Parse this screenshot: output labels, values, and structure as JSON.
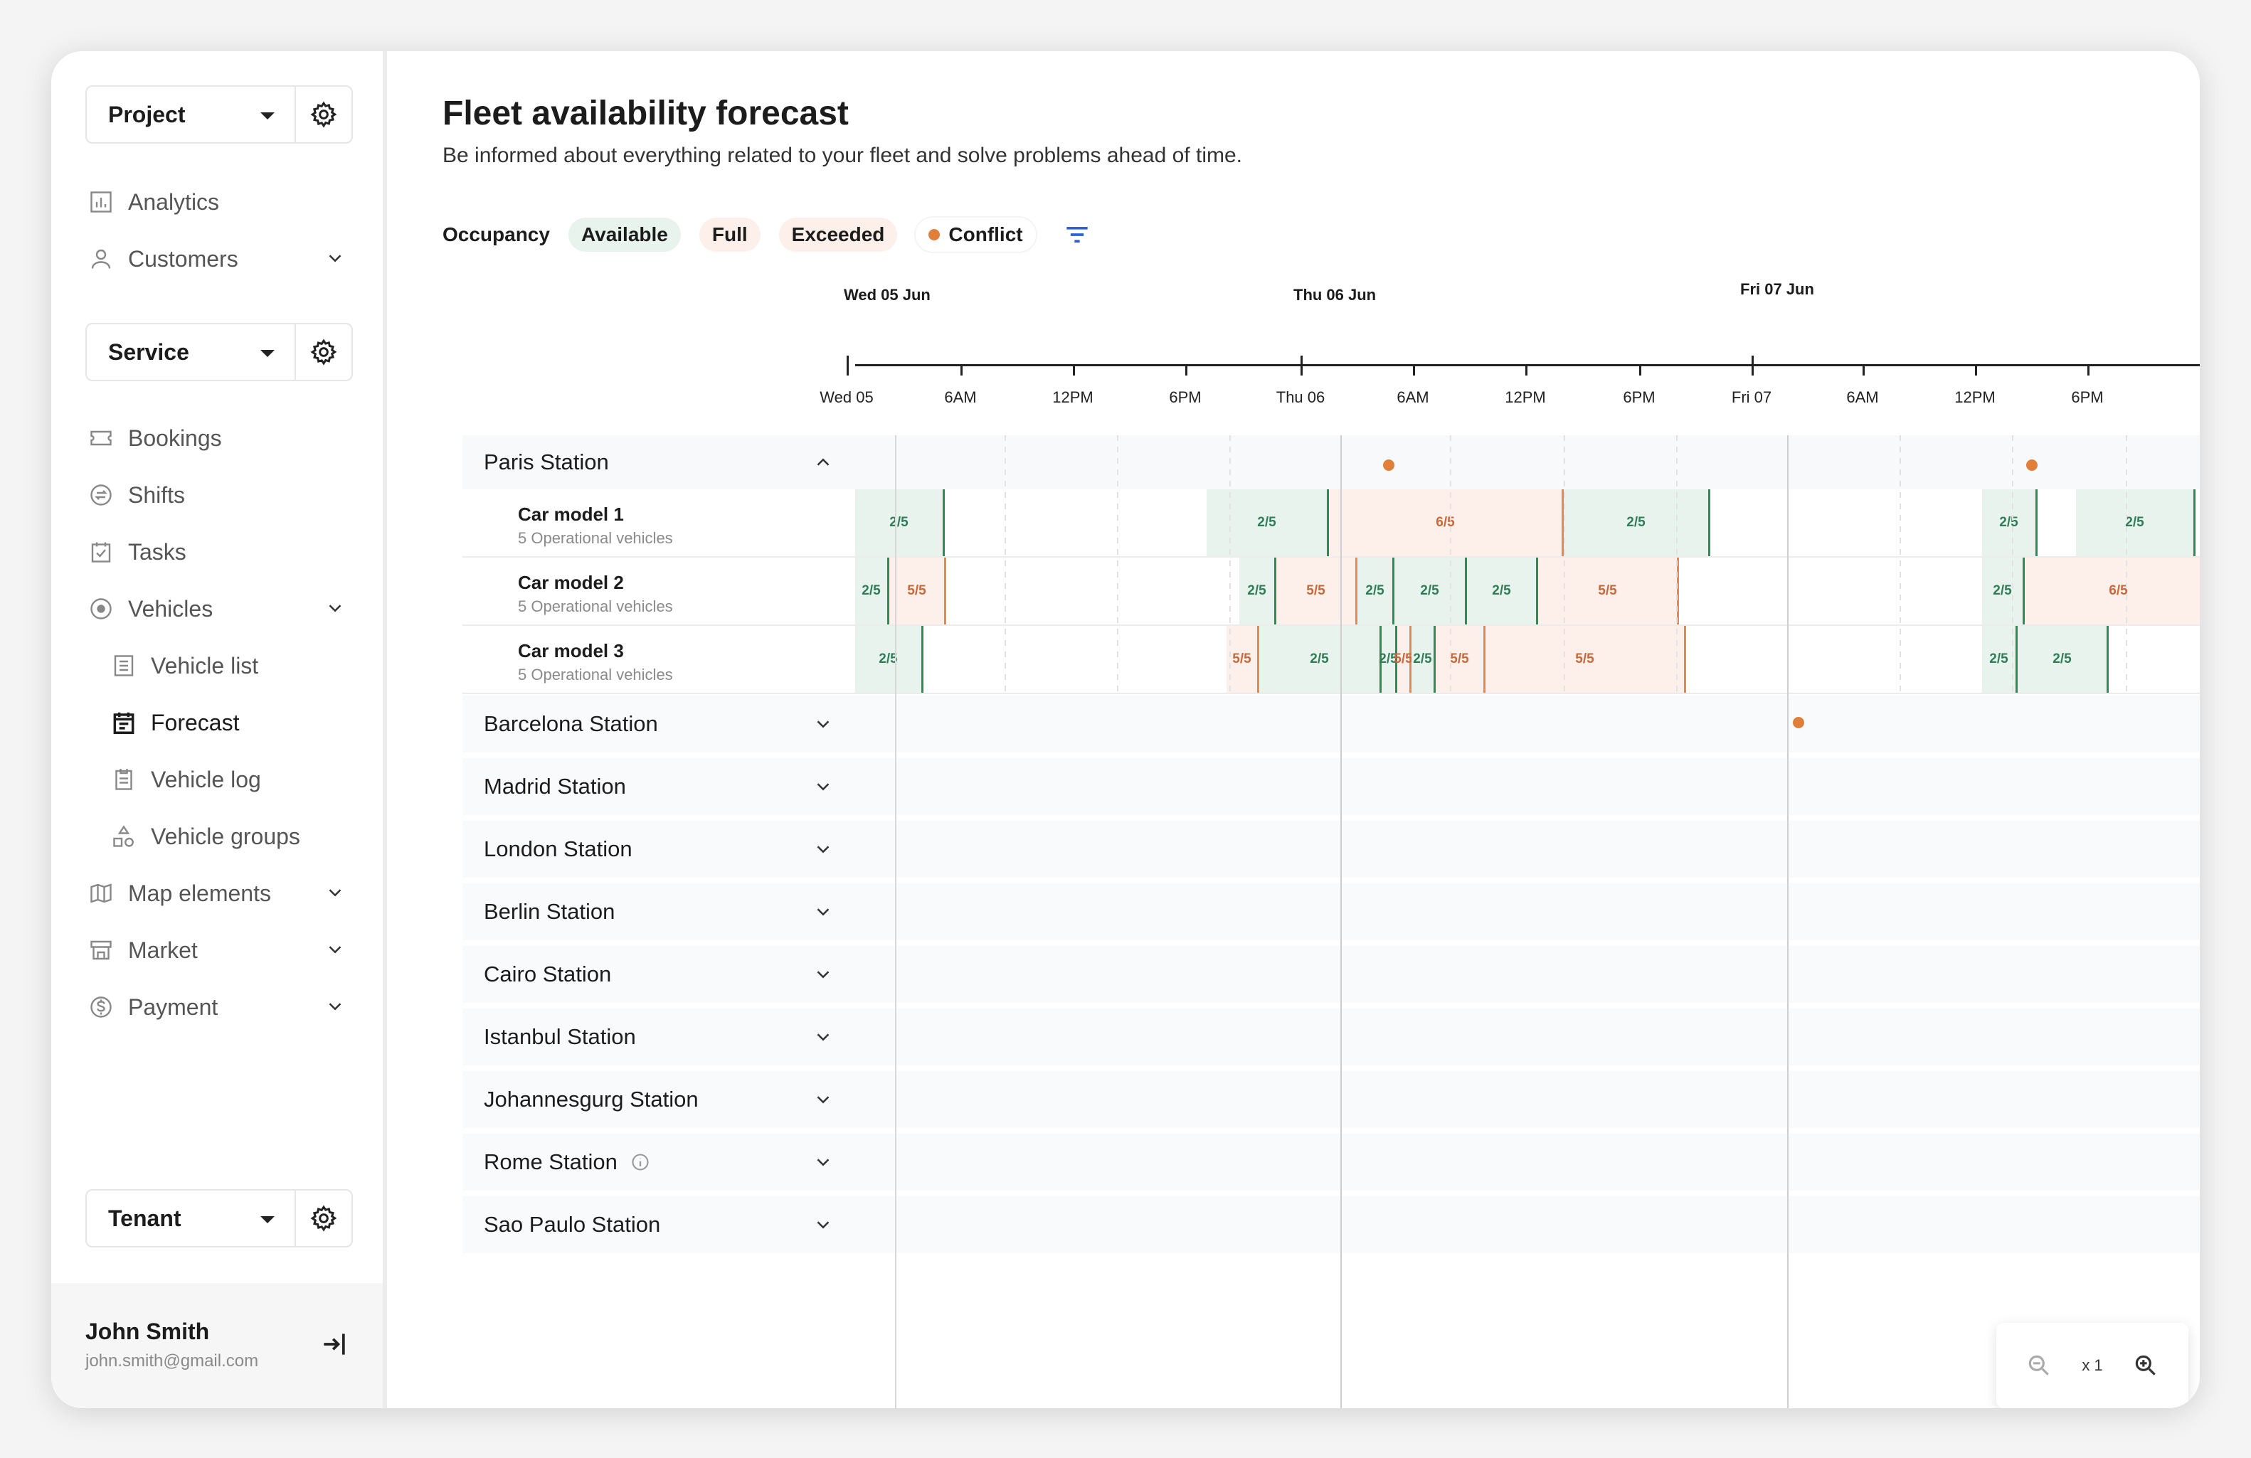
{
  "sidebar": {
    "project": {
      "label": "Project"
    },
    "service": {
      "label": "Service"
    },
    "tenant": {
      "label": "Tenant"
    },
    "items": [
      {
        "label": "Analytics",
        "icon": "analytics-icon"
      },
      {
        "label": "Customers",
        "icon": "user-icon"
      },
      {
        "label": "Bookings",
        "icon": "ticket-icon"
      },
      {
        "label": "Shifts",
        "icon": "swap-icon"
      },
      {
        "label": "Tasks",
        "icon": "tasks-icon"
      },
      {
        "label": "Vehicles",
        "icon": "vehicle-icon"
      },
      {
        "label": "Vehicle list",
        "icon": "list-icon"
      },
      {
        "label": "Forecast",
        "icon": "calendar-icon"
      },
      {
        "label": "Vehicle log",
        "icon": "log-icon"
      },
      {
        "label": "Vehicle groups",
        "icon": "shapes-icon"
      },
      {
        "label": "Map elements",
        "icon": "map-icon"
      },
      {
        "label": "Market",
        "icon": "store-icon"
      },
      {
        "label": "Payment",
        "icon": "dollar-icon"
      }
    ],
    "user": {
      "name": "John Smith",
      "email": "john.smith@gmail.com"
    }
  },
  "main": {
    "title": "Fleet availability forecast",
    "subtitle": "Be informed about everything related to your fleet and solve problems ahead of time.",
    "legend": {
      "occupancy": "Occupancy",
      "available": "Available",
      "full": "Full",
      "exceeded": "Exceeded",
      "conflict": "Conflict"
    },
    "colors": {
      "available": "#e8f3ee",
      "available_line": "#2e8b57",
      "full": "#fdf0ea",
      "exceeded_line": "#e08a55",
      "conflict": "#e07f3a"
    }
  },
  "timeline": {
    "days": [
      "Wed 05 Jun",
      "Thu 06 Jun",
      "Fri 07 Jun"
    ],
    "ticks": [
      "Wed 05",
      "6AM",
      "12PM",
      "6PM",
      "Thu 06",
      "6AM",
      "12PM",
      "6PM",
      "Fri 07",
      "6AM",
      "12PM",
      "6PM"
    ]
  },
  "stations": {
    "paris": "Paris Station",
    "list": [
      "Barcelona Station",
      "Madrid Station",
      "London Station",
      "Berlin Station",
      "Cairo Station",
      "Istanbul Station",
      "Johannesgurg Station",
      "Rome Station",
      "Sao Paulo Station"
    ]
  },
  "cars": [
    {
      "name": "Car model 1",
      "sub": "5 Operational vehicles",
      "segments": [
        {
          "label": "2/5",
          "kind": "g"
        },
        {
          "label": "2/5",
          "kind": "g"
        },
        {
          "label": "6/5",
          "kind": "o"
        },
        {
          "label": "2/5",
          "kind": "g"
        },
        {
          "label": "2/5",
          "kind": "g"
        },
        {
          "label": "2/5",
          "kind": "g"
        }
      ]
    },
    {
      "name": "Car model 2",
      "sub": "5 Operational vehicles",
      "segments": [
        {
          "label": "2/5",
          "kind": "g"
        },
        {
          "label": "5/5",
          "kind": "o"
        },
        {
          "label": "2/5",
          "kind": "g"
        },
        {
          "label": "5/5",
          "kind": "o"
        },
        {
          "label": "2/5",
          "kind": "g"
        },
        {
          "label": "2/5",
          "kind": "g"
        },
        {
          "label": "2/5",
          "kind": "g"
        },
        {
          "label": "5/5",
          "kind": "o"
        },
        {
          "label": "2/5",
          "kind": "g"
        },
        {
          "label": "6/5",
          "kind": "o"
        }
      ]
    },
    {
      "name": "Car model 3",
      "sub": "5 Operational vehicles",
      "segments": [
        {
          "label": "2/5",
          "kind": "g"
        },
        {
          "label": "5/5",
          "kind": "o"
        },
        {
          "label": "2/5",
          "kind": "g"
        },
        {
          "label": "2/5",
          "kind": "g"
        },
        {
          "label": "5/5",
          "kind": "o"
        },
        {
          "label": "2/5",
          "kind": "g"
        },
        {
          "label": "5/5",
          "kind": "o"
        },
        {
          "label": "5/5",
          "kind": "o"
        },
        {
          "label": "2/5",
          "kind": "g"
        },
        {
          "label": "2/5",
          "kind": "g"
        }
      ]
    }
  ],
  "zoom": {
    "level": "x 1"
  }
}
